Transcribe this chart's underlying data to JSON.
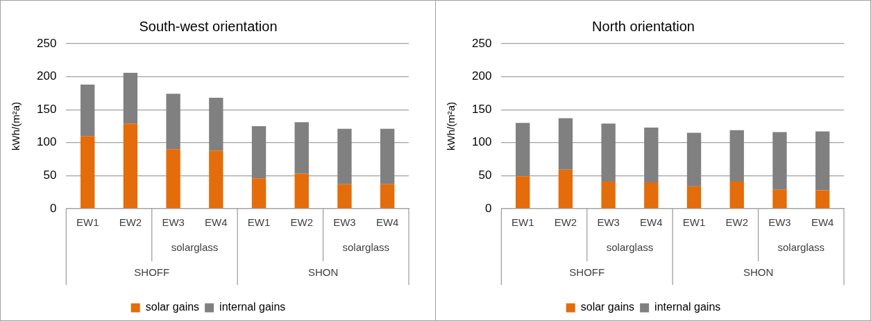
{
  "chart_data": [
    {
      "type": "bar",
      "title": "South-west orientation",
      "ylabel": "kWh/(m²a)",
      "categories": [
        "EW1",
        "EW2",
        "EW3",
        "EW4",
        "EW1",
        "EW2",
        "EW3",
        "EW4"
      ],
      "stacked": true,
      "ylim": [
        0,
        250
      ],
      "yticks": [
        0,
        50,
        100,
        150,
        200,
        250
      ],
      "grid": "y",
      "legend": "bottom",
      "annotations": [
        "solarglass",
        "solarglass",
        "SHOFF",
        "SHON"
      ],
      "series": [
        {
          "name": "solar gains",
          "color": "#e46c0a",
          "values": [
            110,
            129,
            90,
            88,
            46,
            53,
            37,
            37
          ]
        },
        {
          "name": "internal gains",
          "color": "#808080",
          "values": [
            78,
            77,
            84,
            80,
            79,
            78,
            84,
            84
          ]
        }
      ]
    },
    {
      "type": "bar",
      "title": "North orientation",
      "ylabel": "kWh/(m²a)",
      "categories": [
        "EW1",
        "EW2",
        "EW3",
        "EW4",
        "EW1",
        "EW2",
        "EW3",
        "EW4"
      ],
      "stacked": true,
      "ylim": [
        0,
        250
      ],
      "yticks": [
        0,
        50,
        100,
        150,
        200,
        250
      ],
      "grid": "y",
      "legend": "bottom",
      "annotations": [
        "solarglass",
        "solarglass",
        "SHOFF",
        "SHON"
      ],
      "series": [
        {
          "name": "solar gains",
          "color": "#e46c0a",
          "values": [
            49,
            59,
            41,
            40,
            34,
            41,
            29,
            28
          ]
        },
        {
          "name": "internal gains",
          "color": "#808080",
          "values": [
            81,
            78,
            88,
            83,
            81,
            78,
            87,
            89
          ]
        }
      ]
    }
  ]
}
